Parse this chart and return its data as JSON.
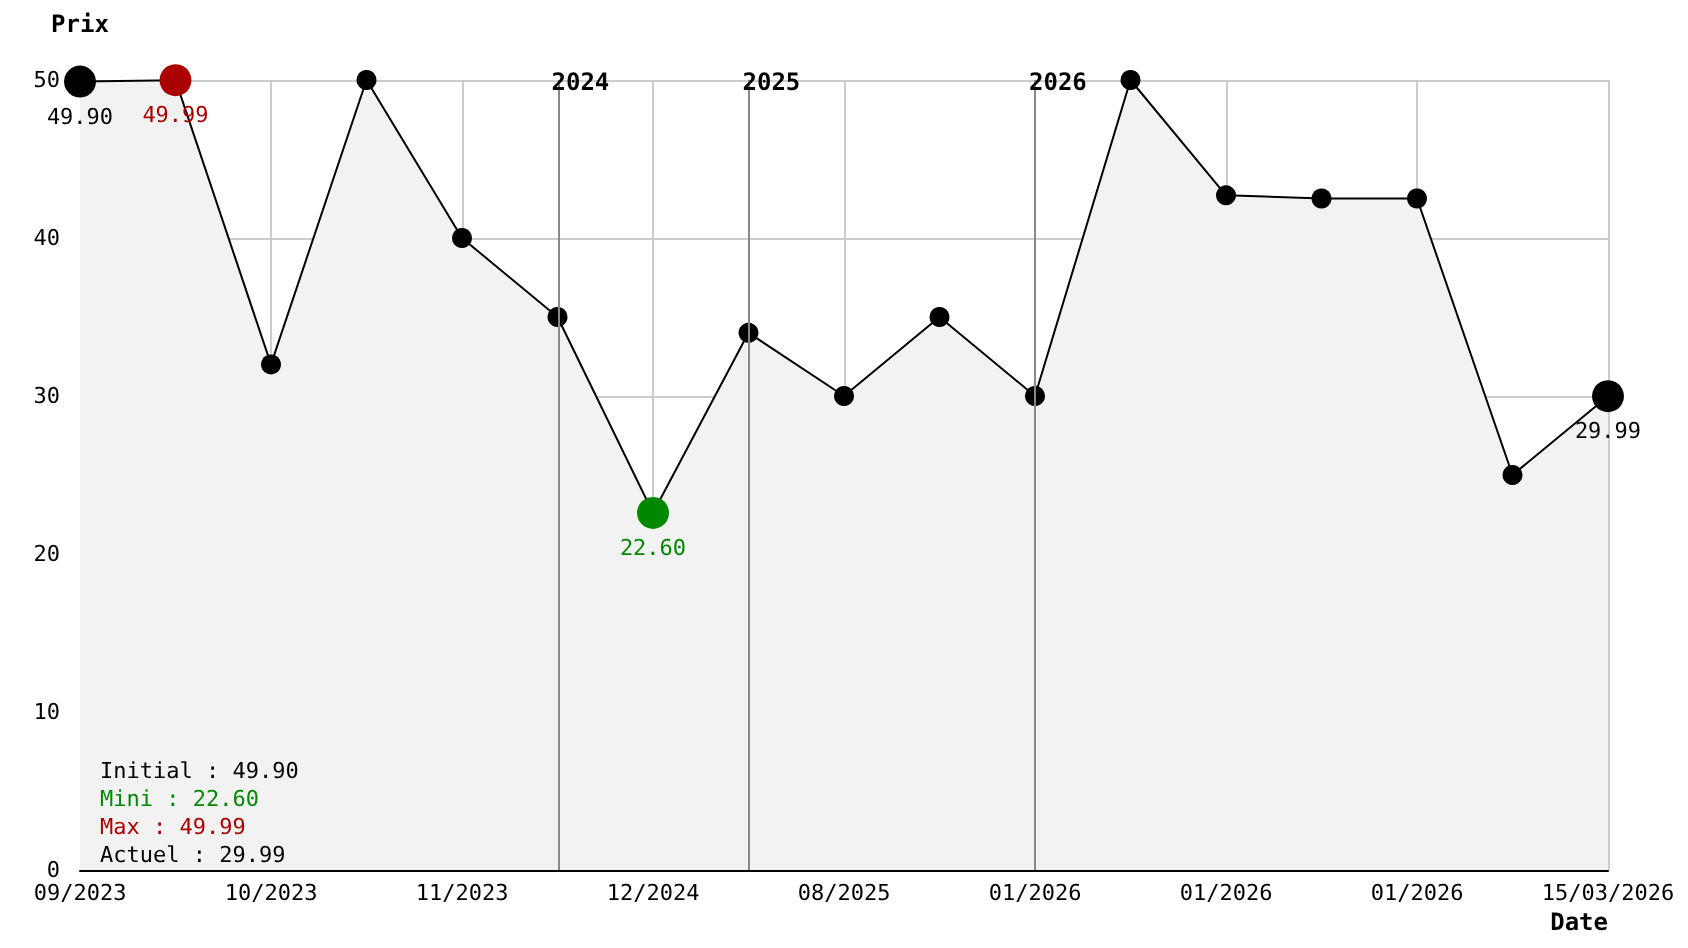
{
  "chart_data": {
    "type": "area",
    "ylabel": "Prix",
    "xlabel": "Date",
    "categories": [
      "09/2023",
      null,
      "10/2023",
      null,
      "11/2023",
      null,
      "12/2024",
      null,
      "08/2025",
      null,
      "01/2026",
      null,
      "01/2026",
      null,
      "01/2026",
      null,
      "15/03/2026"
    ],
    "ylim": [
      0,
      50
    ],
    "yticks": [
      0,
      10,
      20,
      30,
      40,
      50
    ],
    "series": [
      {
        "color": "#000000",
        "values": [
          49.9,
          49.99,
          32,
          50,
          40,
          35,
          22.6,
          34,
          30,
          35,
          30,
          50,
          42.7,
          42.5,
          42.5,
          25,
          29.99
        ],
        "colors": [
          "#000000",
          "#aa0000",
          "#000000",
          "#000000",
          "#000000",
          "#000000",
          "#008800",
          "#000000",
          "#000000",
          "#000000",
          "#000000",
          "#000000",
          "#000000",
          "#000000",
          "#000000",
          "#000000",
          "#000000"
        ],
        "value_labels": [
          "49.90",
          "49.99",
          null,
          null,
          null,
          null,
          "22.60",
          null,
          null,
          null,
          null,
          null,
          null,
          null,
          null,
          null,
          "29.99"
        ]
      }
    ],
    "annotations": [
      "2024",
      "2025",
      "2026",
      "Initial : 49.90",
      "Mini : 22.60",
      "Max : 49.99",
      "Actuel : 29.99"
    ],
    "grid": true,
    "marker": "circle"
  }
}
